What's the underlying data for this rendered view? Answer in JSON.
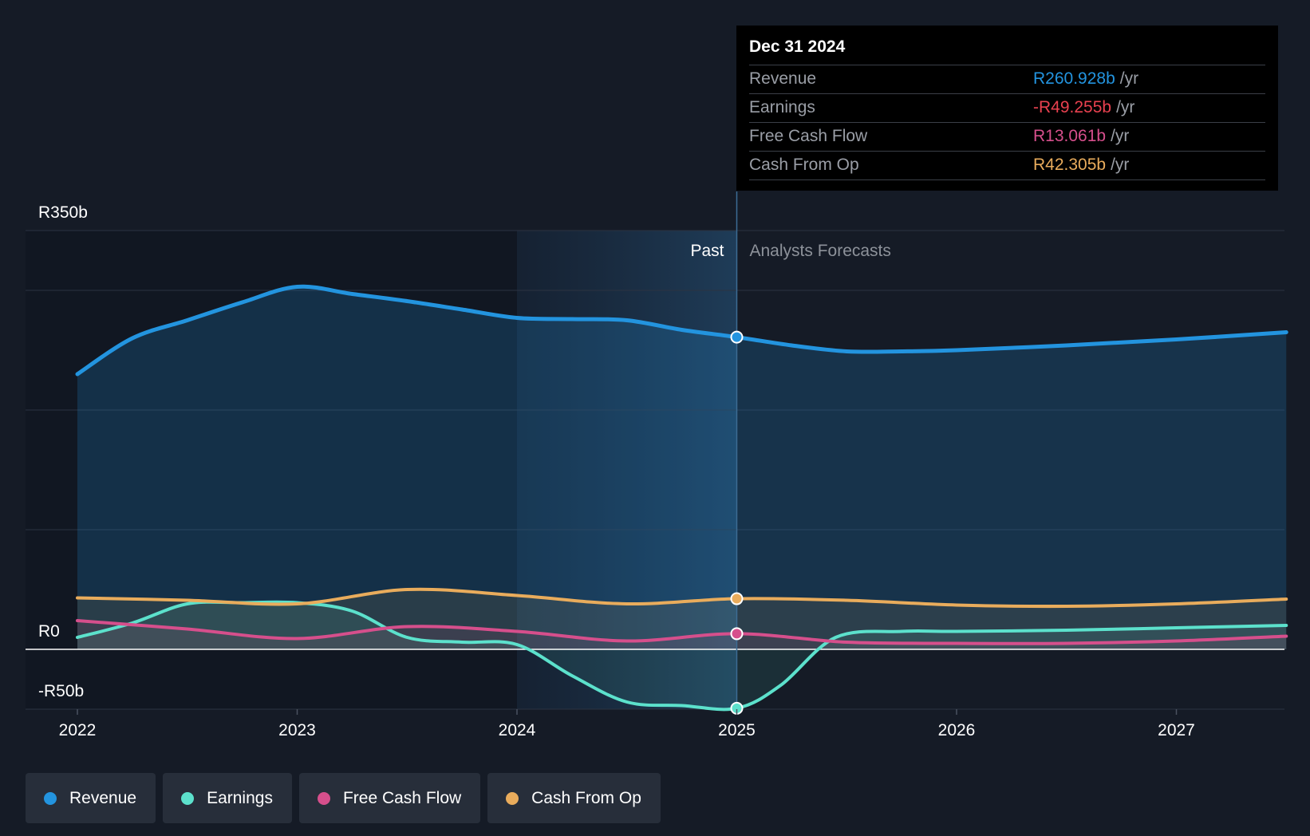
{
  "chart_data": {
    "type": "line",
    "y_unit_prefix": "R",
    "ylim": [
      -50,
      350
    ],
    "y_ticks": [
      {
        "value": 350,
        "label": "R350b"
      },
      {
        "value": 0,
        "label": "R0"
      },
      {
        "value": -50,
        "label": "-R50b"
      }
    ],
    "y_gridlines": [
      350,
      300,
      200,
      100,
      0,
      -50
    ],
    "xlim": [
      2021.77,
      2027.5
    ],
    "x_ticks": [
      {
        "value": 2022,
        "label": "2022"
      },
      {
        "value": 2023,
        "label": "2023"
      },
      {
        "value": 2024,
        "label": "2024"
      },
      {
        "value": 2025,
        "label": "2025"
      },
      {
        "value": 2026,
        "label": "2026"
      },
      {
        "value": 2027,
        "label": "2027"
      }
    ],
    "past_label": "Past",
    "forecast_label": "Analysts Forecasts",
    "divider_x": 2025,
    "highlight_start_x": 2024,
    "series": [
      {
        "name": "Revenue",
        "color": "#2394df",
        "points": [
          [
            2022,
            230
          ],
          [
            2022.25,
            260
          ],
          [
            2022.5,
            275
          ],
          [
            2022.75,
            290
          ],
          [
            2023,
            303
          ],
          [
            2023.25,
            297
          ],
          [
            2023.5,
            291
          ],
          [
            2023.75,
            284
          ],
          [
            2024,
            277
          ],
          [
            2024.25,
            276
          ],
          [
            2024.5,
            275
          ],
          [
            2024.75,
            267
          ],
          [
            2025,
            260.928
          ],
          [
            2025.25,
            254
          ],
          [
            2025.5,
            249
          ],
          [
            2025.75,
            249
          ],
          [
            2026,
            250
          ],
          [
            2026.5,
            254
          ],
          [
            2027,
            259
          ],
          [
            2027.5,
            265
          ]
        ]
      },
      {
        "name": "Earnings",
        "color": "#5ce1cc",
        "points": [
          [
            2022,
            10
          ],
          [
            2022.25,
            22
          ],
          [
            2022.5,
            38
          ],
          [
            2022.75,
            39
          ],
          [
            2023,
            39
          ],
          [
            2023.25,
            32
          ],
          [
            2023.5,
            10
          ],
          [
            2023.75,
            6
          ],
          [
            2024,
            4
          ],
          [
            2024.25,
            -22
          ],
          [
            2024.5,
            -44
          ],
          [
            2024.75,
            -47
          ],
          [
            2025,
            -49.255
          ],
          [
            2025.2,
            -30
          ],
          [
            2025.45,
            10
          ],
          [
            2025.75,
            15
          ],
          [
            2026,
            15
          ],
          [
            2026.5,
            16
          ],
          [
            2027,
            18
          ],
          [
            2027.5,
            20
          ]
        ]
      },
      {
        "name": "Free Cash Flow",
        "color": "#d64f8c",
        "points": [
          [
            2022,
            24
          ],
          [
            2022.5,
            17
          ],
          [
            2023,
            9
          ],
          [
            2023.5,
            19
          ],
          [
            2024,
            15
          ],
          [
            2024.5,
            7
          ],
          [
            2025,
            13.061
          ],
          [
            2025.5,
            6
          ],
          [
            2026,
            5
          ],
          [
            2026.5,
            5
          ],
          [
            2027,
            7
          ],
          [
            2027.5,
            11
          ]
        ]
      },
      {
        "name": "Cash From Op",
        "color": "#e9ac5c",
        "points": [
          [
            2022,
            43
          ],
          [
            2022.5,
            41
          ],
          [
            2023,
            38
          ],
          [
            2023.5,
            50
          ],
          [
            2024,
            45
          ],
          [
            2024.5,
            38
          ],
          [
            2025,
            42.305
          ],
          [
            2025.5,
            41
          ],
          [
            2026,
            37
          ],
          [
            2026.5,
            36
          ],
          [
            2027,
            38
          ],
          [
            2027.5,
            42
          ]
        ]
      }
    ],
    "tooltip": {
      "date": "Dec 31 2024",
      "unit": "/yr",
      "rows": [
        {
          "label": "Revenue",
          "value": "R260.928b",
          "color": "#2394df"
        },
        {
          "label": "Earnings",
          "value": "-R49.255b",
          "color": "#e8414f"
        },
        {
          "label": "Free Cash Flow",
          "value": "R13.061b",
          "color": "#d64f8c"
        },
        {
          "label": "Cash From Op",
          "value": "R42.305b",
          "color": "#e9ac5c"
        }
      ]
    },
    "legend": [
      {
        "label": "Revenue",
        "color": "#2394df"
      },
      {
        "label": "Earnings",
        "color": "#5ce1cc"
      },
      {
        "label": "Free Cash Flow",
        "color": "#d64f8c"
      },
      {
        "label": "Cash From Op",
        "color": "#e9ac5c"
      }
    ]
  }
}
